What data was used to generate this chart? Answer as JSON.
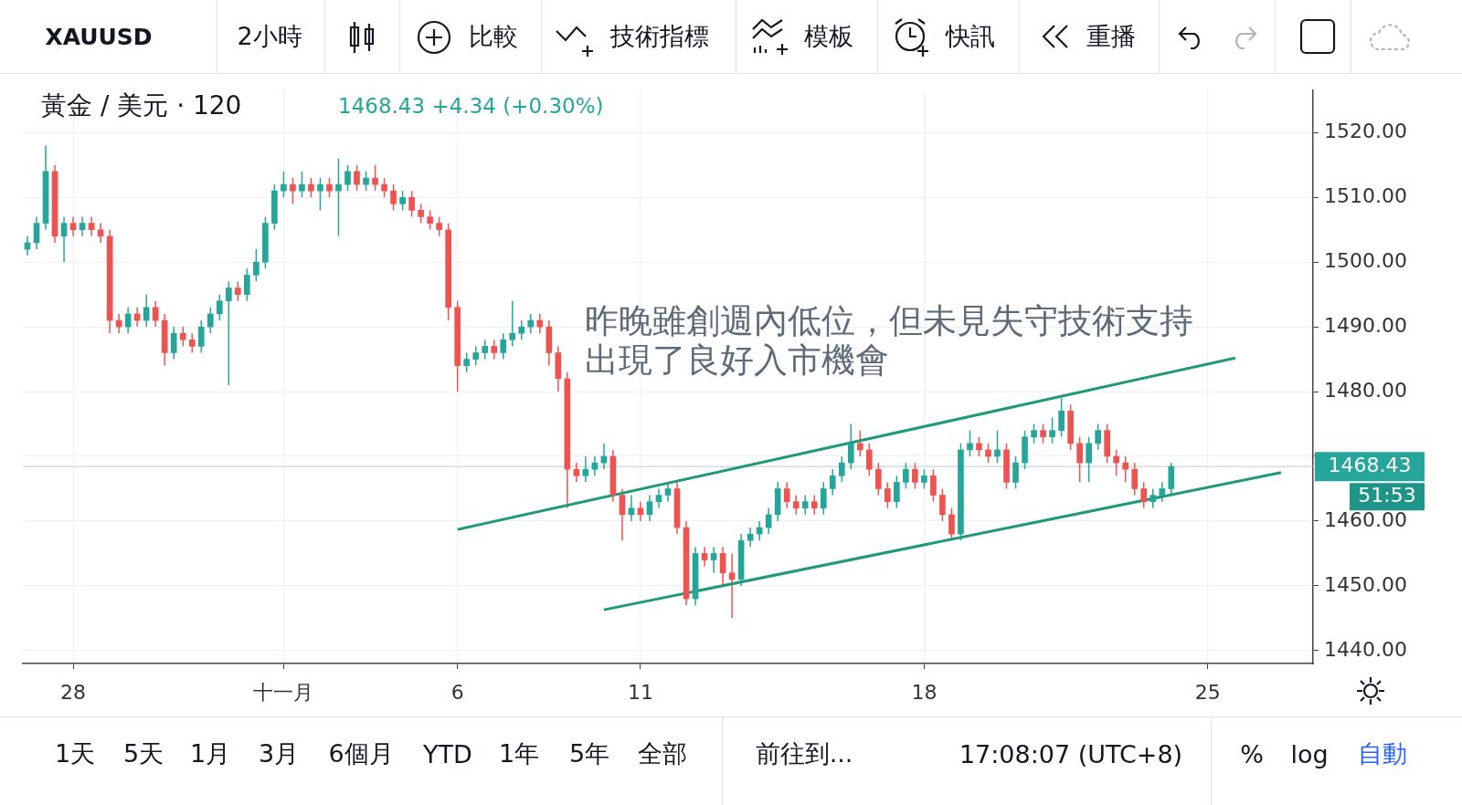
{
  "chart_data": {
    "type": "candlestick",
    "title": "黃金 / 美元 · 120",
    "subtitle": "1468.43 +4.34 (+0.30%)",
    "annotations": [
      "昨晚雖創週內低位，但未見失守技術支持",
      "出現了良好入市機會",
      "51:53",
      "XAUUSD",
      "2小時",
      "比較",
      "技術指標",
      "模板",
      "快訊",
      "重播",
      "1天",
      "5天",
      "1月",
      "3月",
      "6個月",
      "YTD",
      "1年",
      "5年",
      "全部",
      "前往到...",
      "17:08:07 (UTC+8)",
      "%",
      "log",
      "自動"
    ],
    "categories": [
      null,
      null,
      null,
      null,
      null,
      "28",
      null,
      null,
      null,
      null,
      null,
      null,
      null,
      null,
      null,
      null,
      null,
      null,
      null,
      null,
      null,
      null,
      null,
      null,
      null,
      null,
      null,
      null,
      "十一月",
      null,
      null,
      null,
      null,
      null,
      null,
      null,
      null,
      null,
      null,
      null,
      null,
      null,
      null,
      null,
      null,
      null,
      null,
      "6",
      null,
      null,
      null,
      null,
      null,
      null,
      null,
      null,
      null,
      null,
      null,
      null,
      null,
      null,
      null,
      null,
      null,
      null,
      null,
      "11",
      null,
      null,
      null,
      null,
      null,
      null,
      null,
      null,
      null,
      null,
      null,
      null,
      null,
      null,
      null,
      null,
      null,
      null,
      null,
      null,
      null,
      null,
      null,
      null,
      null,
      null,
      null,
      null,
      null,
      null,
      "18",
      null,
      null,
      null,
      null,
      null,
      null,
      null,
      null,
      null,
      null,
      null,
      null,
      null,
      null,
      null,
      null,
      null,
      null,
      null,
      null,
      null,
      null,
      null,
      null,
      null,
      null,
      null,
      null,
      null,
      null,
      "25",
      null,
      null,
      null,
      null,
      null,
      null,
      null,
      null,
      null,
      null,
      null
    ],
    "ohlc": [
      [
        1502,
        1504,
        1501,
        1503
      ],
      [
        1503,
        1507,
        1502,
        1506
      ],
      [
        1506,
        1518,
        1505,
        1514
      ],
      [
        1514,
        1515,
        1503,
        1504
      ],
      [
        1504,
        1507,
        1500,
        1506
      ],
      [
        1506,
        1507,
        1504,
        1505
      ],
      [
        1505,
        1507,
        1504,
        1506
      ],
      [
        1506,
        1507,
        1504,
        1505
      ],
      [
        1505,
        1506,
        1503,
        1504
      ],
      [
        1504,
        1505,
        1489,
        1491
      ],
      [
        1491,
        1492,
        1489,
        1490
      ],
      [
        1490,
        1493,
        1489,
        1492
      ],
      [
        1492,
        1493,
        1490,
        1491
      ],
      [
        1491,
        1495,
        1490,
        1493
      ],
      [
        1493,
        1494,
        1490,
        1491
      ],
      [
        1491,
        1492,
        1484,
        1486
      ],
      [
        1486,
        1490,
        1485,
        1489
      ],
      [
        1489,
        1490,
        1487,
        1488
      ],
      [
        1488,
        1489,
        1486,
        1487
      ],
      [
        1487,
        1491,
        1486,
        1490
      ],
      [
        1490,
        1493,
        1489,
        1492
      ],
      [
        1492,
        1495,
        1491,
        1494
      ],
      [
        1494,
        1497,
        1481,
        1496
      ],
      [
        1496,
        1497,
        1494,
        1495
      ],
      [
        1495,
        1499,
        1494,
        1498
      ],
      [
        1498,
        1502,
        1497,
        1500
      ],
      [
        1500,
        1507,
        1499,
        1506
      ],
      [
        1506,
        1512,
        1505,
        1511
      ],
      [
        1511,
        1514,
        1510,
        1512
      ],
      [
        1512,
        1513,
        1509,
        1511
      ],
      [
        1511,
        1514,
        1510,
        1512
      ],
      [
        1512,
        1513,
        1510,
        1511
      ],
      [
        1511,
        1513,
        1508,
        1512
      ],
      [
        1512,
        1513,
        1510,
        1511
      ],
      [
        1511,
        1516,
        1504,
        1512
      ],
      [
        1512,
        1515,
        1511,
        1514
      ],
      [
        1514,
        1515,
        1511,
        1512
      ],
      [
        1512,
        1514,
        1511,
        1513
      ],
      [
        1513,
        1515,
        1511,
        1512
      ],
      [
        1512,
        1513,
        1510,
        1511
      ],
      [
        1511,
        1512,
        1508,
        1509
      ],
      [
        1509,
        1511,
        1508,
        1510
      ],
      [
        1510,
        1511,
        1507,
        1508
      ],
      [
        1508,
        1509,
        1506,
        1507
      ],
      [
        1507,
        1508,
        1505,
        1506
      ],
      [
        1506,
        1507,
        1504,
        1505
      ],
      [
        1505,
        1506,
        1491,
        1493
      ],
      [
        1493,
        1494,
        1480,
        1484
      ],
      [
        1484,
        1486,
        1483,
        1485
      ],
      [
        1485,
        1487,
        1484,
        1486
      ],
      [
        1486,
        1488,
        1485,
        1487
      ],
      [
        1487,
        1488,
        1485,
        1486
      ],
      [
        1486,
        1489,
        1485,
        1488
      ],
      [
        1488,
        1494,
        1487,
        1489
      ],
      [
        1489,
        1491,
        1488,
        1490
      ],
      [
        1490,
        1492,
        1489,
        1491
      ],
      [
        1491,
        1492,
        1489,
        1490
      ],
      [
        1490,
        1491,
        1484,
        1486
      ],
      [
        1486,
        1487,
        1480,
        1482
      ],
      [
        1482,
        1483,
        1462,
        1468
      ],
      [
        1468,
        1469,
        1466,
        1467
      ],
      [
        1467,
        1470,
        1466,
        1468
      ],
      [
        1468,
        1470,
        1467,
        1469
      ],
      [
        1469,
        1472,
        1468,
        1470
      ],
      [
        1470,
        1471,
        1463,
        1464
      ],
      [
        1464,
        1465,
        1457,
        1461
      ],
      [
        1461,
        1464,
        1460,
        1462
      ],
      [
        1462,
        1463,
        1460,
        1461
      ],
      [
        1461,
        1464,
        1460,
        1463
      ],
      [
        1463,
        1465,
        1462,
        1464
      ],
      [
        1464,
        1466,
        1463,
        1465
      ],
      [
        1465,
        1466,
        1458,
        1459
      ],
      [
        1459,
        1460,
        1447,
        1448
      ],
      [
        1448,
        1456,
        1447,
        1455
      ],
      [
        1455,
        1456,
        1453,
        1454
      ],
      [
        1454,
        1456,
        1452,
        1455
      ],
      [
        1455,
        1456,
        1450,
        1452
      ],
      [
        1452,
        1455,
        1445,
        1451
      ],
      [
        1451,
        1458,
        1450,
        1457
      ],
      [
        1457,
        1459,
        1456,
        1458
      ],
      [
        1458,
        1460,
        1457,
        1459
      ],
      [
        1459,
        1462,
        1458,
        1461
      ],
      [
        1461,
        1466,
        1460,
        1465
      ],
      [
        1465,
        1466,
        1462,
        1463
      ],
      [
        1463,
        1464,
        1461,
        1462
      ],
      [
        1462,
        1464,
        1461,
        1463
      ],
      [
        1463,
        1464,
        1461,
        1462
      ],
      [
        1462,
        1466,
        1461,
        1465
      ],
      [
        1465,
        1468,
        1464,
        1467
      ],
      [
        1467,
        1470,
        1466,
        1469
      ],
      [
        1469,
        1475,
        1468,
        1472
      ],
      [
        1472,
        1474,
        1470,
        1471
      ],
      [
        1471,
        1472,
        1467,
        1468
      ],
      [
        1468,
        1469,
        1464,
        1465
      ],
      [
        1465,
        1466,
        1462,
        1463
      ],
      [
        1463,
        1467,
        1462,
        1466
      ],
      [
        1466,
        1469,
        1465,
        1468
      ],
      [
        1468,
        1469,
        1465,
        1466
      ],
      [
        1466,
        1468,
        1465,
        1467
      ],
      [
        1467,
        1468,
        1463,
        1464
      ],
      [
        1464,
        1465,
        1460,
        1461
      ],
      [
        1461,
        1462,
        1457,
        1458
      ],
      [
        1458,
        1472,
        1457,
        1471
      ],
      [
        1471,
        1474,
        1470,
        1472
      ],
      [
        1472,
        1473,
        1470,
        1471
      ],
      [
        1471,
        1472,
        1469,
        1470
      ],
      [
        1470,
        1474,
        1469,
        1471
      ],
      [
        1471,
        1472,
        1465,
        1466
      ],
      [
        1466,
        1470,
        1465,
        1469
      ],
      [
        1469,
        1474,
        1468,
        1473
      ],
      [
        1473,
        1475,
        1472,
        1474
      ],
      [
        1474,
        1475,
        1472,
        1473
      ],
      [
        1473,
        1476,
        1472,
        1474
      ],
      [
        1474,
        1479,
        1473,
        1477
      ],
      [
        1477,
        1478,
        1471,
        1472
      ],
      [
        1472,
        1473,
        1466,
        1469
      ],
      [
        1469,
        1473,
        1466,
        1472
      ],
      [
        1472,
        1475,
        1471,
        1474
      ],
      [
        1474,
        1475,
        1469,
        1470
      ],
      [
        1470,
        1471,
        1467,
        1469
      ],
      [
        1469,
        1470,
        1466,
        1468
      ],
      [
        1468,
        1469,
        1464,
        1465
      ],
      [
        1465,
        1466,
        1462,
        1463
      ],
      [
        1463,
        1465,
        1462,
        1464
      ],
      [
        1464,
        1466,
        1463,
        1465
      ],
      [
        1465,
        1469,
        1464,
        1468.43
      ],
      null,
      null,
      null,
      null,
      null,
      null,
      null,
      null,
      null,
      null,
      null,
      null,
      null,
      null,
      null
    ],
    "colors": [
      "#26a69a",
      "#26a69a",
      "#26a69a",
      "#ef5350",
      "#26a69a",
      "#ef5350",
      "#26a69a",
      "#ef5350",
      "#ef5350",
      "#ef5350",
      "#ef5350",
      "#26a69a",
      "#ef5350",
      "#26a69a",
      "#ef5350",
      "#ef5350",
      "#26a69a",
      "#ef5350",
      "#ef5350",
      "#26a69a",
      "#26a69a",
      "#26a69a",
      "#26a69a",
      "#ef5350",
      "#26a69a",
      "#26a69a",
      "#26a69a",
      "#26a69a",
      "#26a69a",
      "#ef5350",
      "#26a69a",
      "#ef5350",
      "#26a69a",
      "#ef5350",
      "#26a69a",
      "#26a69a",
      "#ef5350",
      "#26a69a",
      "#ef5350",
      "#ef5350",
      "#ef5350",
      "#26a69a",
      "#ef5350",
      "#ef5350",
      "#ef5350",
      "#ef5350",
      "#ef5350",
      "#ef5350",
      "#26a69a",
      "#26a69a",
      "#26a69a",
      "#ef5350",
      "#26a69a",
      "#26a69a",
      "#26a69a",
      "#26a69a",
      "#ef5350",
      "#ef5350",
      "#ef5350",
      "#ef5350",
      "#ef5350",
      "#26a69a",
      "#26a69a",
      "#26a69a",
      "#ef5350",
      "#ef5350",
      "#26a69a",
      "#ef5350",
      "#26a69a",
      "#26a69a",
      "#26a69a",
      "#ef5350",
      "#ef5350",
      "#26a69a",
      "#ef5350",
      "#26a69a",
      "#ef5350",
      "#ef5350",
      "#26a69a",
      "#26a69a",
      "#26a69a",
      "#26a69a",
      "#26a69a",
      "#ef5350",
      "#ef5350",
      "#26a69a",
      "#ef5350",
      "#26a69a",
      "#26a69a",
      "#26a69a",
      "#26a69a",
      "#ef5350",
      "#ef5350",
      "#ef5350",
      "#ef5350",
      "#26a69a",
      "#26a69a",
      "#ef5350",
      "#26a69a",
      "#ef5350",
      "#ef5350",
      "#ef5350",
      "#26a69a",
      "#26a69a",
      "#ef5350",
      "#ef5350",
      "#26a69a",
      "#ef5350",
      "#26a69a",
      "#26a69a",
      "#26a69a",
      "#ef5350",
      "#26a69a",
      "#26a69a",
      "#ef5350",
      "#ef5350",
      "#26a69a",
      "#26a69a",
      "#ef5350",
      "#ef5350",
      "#ef5350",
      "#ef5350",
      "#ef5350",
      "#26a69a",
      "#26a69a",
      "#26a69a",
      null,
      null,
      null,
      null,
      null,
      null,
      null,
      null,
      null,
      null,
      null,
      null,
      null,
      null,
      null
    ],
    "series": [
      {
        "type": "line",
        "color": "#1e9a78",
        "values": [
          null,
          null,
          null,
          null,
          null,
          null,
          null,
          null,
          null,
          null,
          null,
          null,
          null,
          null,
          null,
          null,
          null,
          null,
          null,
          null,
          null,
          null,
          null,
          null,
          null,
          null,
          null,
          null,
          null,
          null,
          null,
          null,
          null,
          null,
          null,
          null,
          null,
          null,
          null,
          null,
          null,
          null,
          null,
          null,
          null,
          null,
          null,
          1458.7,
          null,
          null,
          null,
          null,
          null,
          null,
          null,
          null,
          null,
          null,
          null,
          null,
          null,
          null,
          null,
          null,
          null,
          null,
          null,
          null,
          null,
          null,
          null,
          null,
          null,
          null,
          null,
          null,
          null,
          null,
          null,
          null,
          null,
          null,
          null,
          null,
          null,
          null,
          null,
          null,
          null,
          null,
          null,
          null,
          null,
          null,
          null,
          null,
          null,
          null,
          null,
          null,
          null,
          null,
          null,
          null,
          null,
          null,
          null,
          null,
          null,
          null,
          null,
          null,
          null,
          null,
          null,
          null,
          null,
          null,
          null,
          null,
          null,
          null,
          null,
          null,
          null,
          null,
          null,
          null,
          null,
          null,
          null,
          null,
          1485.2,
          null,
          null,
          null,
          null,
          null,
          null,
          null,
          null
        ]
      },
      {
        "type": "line",
        "color": "#1e9a78",
        "values": [
          null,
          null,
          null,
          null,
          null,
          null,
          null,
          null,
          null,
          null,
          null,
          null,
          null,
          null,
          null,
          null,
          null,
          null,
          null,
          null,
          null,
          null,
          null,
          null,
          null,
          null,
          null,
          null,
          null,
          null,
          null,
          null,
          null,
          null,
          null,
          null,
          null,
          null,
          null,
          null,
          null,
          null,
          null,
          null,
          null,
          null,
          null,
          null,
          null,
          null,
          null,
          null,
          null,
          null,
          null,
          null,
          null,
          null,
          null,
          null,
          null,
          null,
          null,
          1446.3,
          null,
          null,
          null,
          null,
          null,
          null,
          null,
          null,
          null,
          null,
          null,
          null,
          null,
          null,
          null,
          null,
          null,
          null,
          null,
          null,
          null,
          null,
          null,
          null,
          null,
          null,
          null,
          null,
          null,
          null,
          null,
          null,
          null,
          null,
          null,
          null,
          null,
          null,
          null,
          null,
          null,
          null,
          null,
          null,
          null,
          null,
          null,
          null,
          null,
          null,
          null,
          null,
          null,
          null,
          null,
          null,
          null,
          null,
          null,
          null,
          null,
          null,
          null,
          null,
          null,
          null,
          null,
          null,
          null,
          null,
          null,
          null,
          null,
          1467.5,
          null,
          null,
          null
        ]
      }
    ],
    "marker": "none",
    "ylim": [
      1438,
      1526.5
    ],
    "yticks": [
      {
        "value": 1440,
        "label": "1440.00"
      },
      {
        "value": 1450,
        "label": "1450.00"
      },
      {
        "value": 1460,
        "label": "1460.00"
      },
      {
        "value": 1470,
        "label": null
      },
      {
        "value": 1480,
        "label": "1480.00"
      },
      {
        "value": 1490,
        "label": "1490.00"
      },
      {
        "value": 1500,
        "label": "1500.00"
      },
      {
        "value": 1510,
        "label": "1510.00"
      },
      {
        "value": 1520,
        "label": "1520.00"
      }
    ],
    "ref_lines": [
      {
        "axis": "y",
        "value": 1468.43,
        "label": "1468.43",
        "color": "#c3c6ce"
      }
    ],
    "grid": true,
    "legend": false
  }
}
